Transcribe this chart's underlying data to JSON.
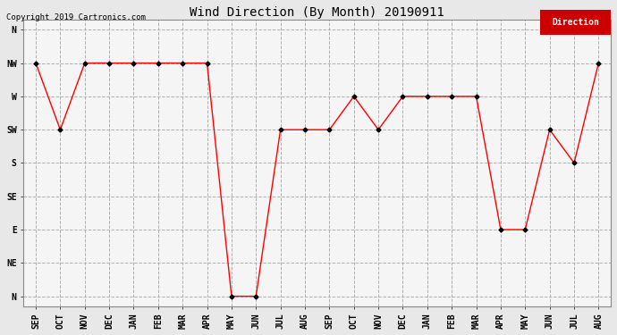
{
  "title": "Wind Direction (By Month) 20190911",
  "copyright": "Copyright 2019 Cartronics.com",
  "legend_label": "Direction",
  "x_labels": [
    "SEP",
    "OCT",
    "NOV",
    "DEC",
    "JAN",
    "FEB",
    "MAR",
    "APR",
    "MAY",
    "JUN",
    "JUL",
    "AUG",
    "SEP",
    "OCT",
    "NOV",
    "DEC",
    "JAN",
    "FEB",
    "MAR",
    "APR",
    "MAY",
    "JUN",
    "JUL",
    "AUG"
  ],
  "y_labels": [
    "N",
    "NW",
    "W",
    "SW",
    "S",
    "SE",
    "E",
    "NE",
    "N"
  ],
  "y_tick_positions": [
    8,
    7,
    6,
    5,
    4,
    3,
    2,
    1,
    0
  ],
  "data_values": [
    7,
    5,
    7,
    7,
    7,
    7,
    7,
    7,
    0,
    0,
    5,
    5,
    5,
    6,
    5,
    6,
    6,
    6,
    6,
    2,
    2,
    5,
    4,
    7
  ],
  "line_color": "#ff0000",
  "marker_color": "#000000",
  "background_color": "#e8e8e8",
  "plot_bg_color": "#f5f5f5",
  "grid_color": "#b0b0b0",
  "title_fontsize": 10,
  "copyright_fontsize": 6.5,
  "tick_fontsize": 7,
  "legend_bg": "#cc0000",
  "legend_text_color": "white",
  "legend_fontsize": 7
}
